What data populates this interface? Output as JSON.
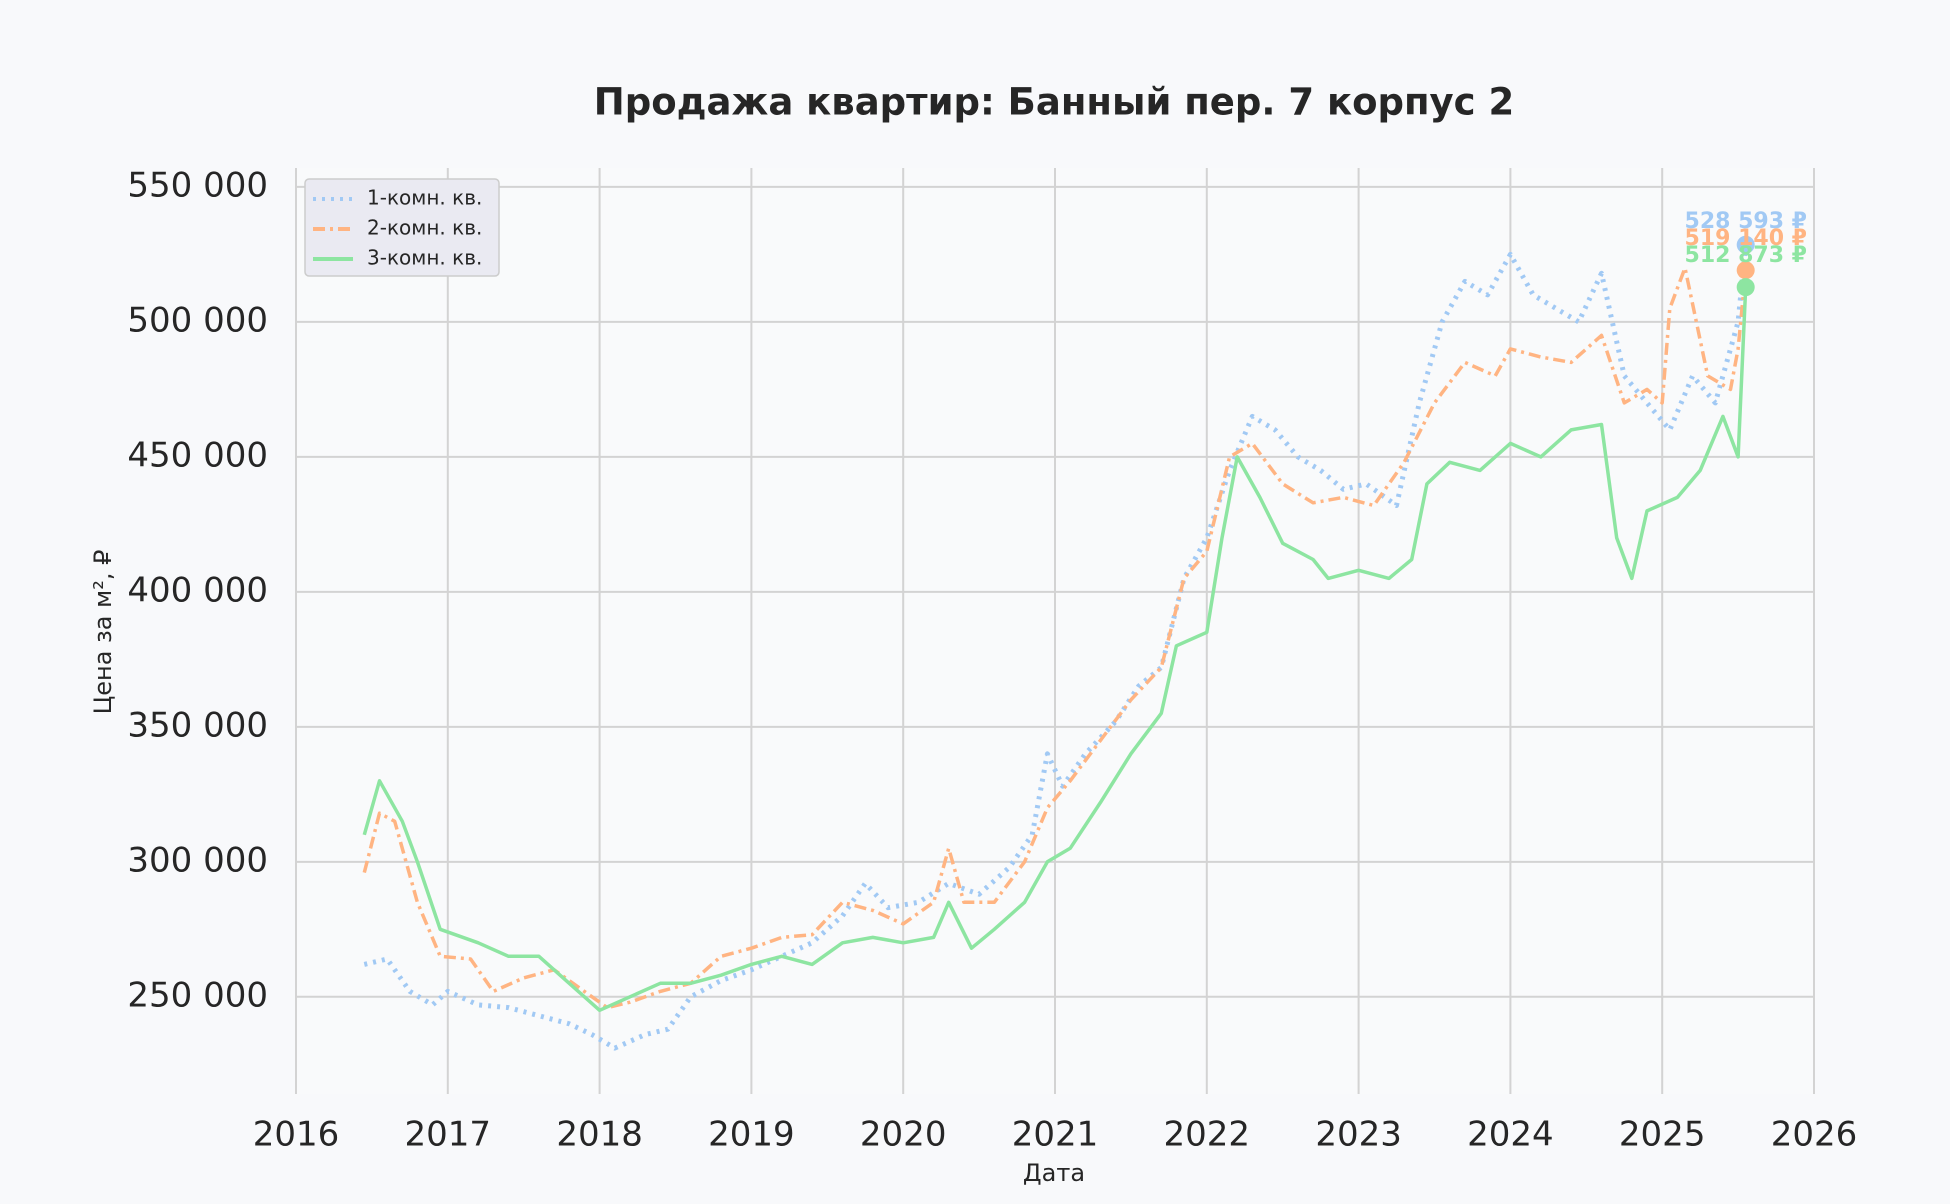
{
  "chart_data": {
    "type": "line",
    "title": "Продажа квартир: Банный пер. 7 корпус 2",
    "x_label": "Дата",
    "y_label": "Цена за м², ₽",
    "xlim": [
      2016,
      2026
    ],
    "xticks": [
      2016,
      2017,
      2018,
      2019,
      2020,
      2021,
      2022,
      2023,
      2024,
      2025,
      2026
    ],
    "ylim": [
      214000,
      557000
    ],
    "yticks": [
      {
        "value": 250000,
        "label": "250 000"
      },
      {
        "value": 300000,
        "label": "300 000"
      },
      {
        "value": 350000,
        "label": "350 000"
      },
      {
        "value": 400000,
        "label": "400 000"
      },
      {
        "value": 450000,
        "label": "450 000"
      },
      {
        "value": 500000,
        "label": "500 000"
      },
      {
        "value": 550000,
        "label": "550 000"
      }
    ],
    "grid": true,
    "legend": "upper left",
    "series": [
      {
        "name": "1-комн. кв.",
        "color": "#a1c9f4",
        "linestyle": "dotted",
        "x": [
          2016.45,
          2016.6,
          2016.75,
          2016.9,
          2017.0,
          2017.2,
          2017.4,
          2017.6,
          2017.8,
          2017.95,
          2018.1,
          2018.3,
          2018.45,
          2018.6,
          2018.8,
          2019.0,
          2019.2,
          2019.4,
          2019.6,
          2019.75,
          2019.9,
          2020.1,
          2020.3,
          2020.5,
          2020.7,
          2020.85,
          2020.95,
          2021.05,
          2021.2,
          2021.4,
          2021.55,
          2021.7,
          2021.85,
          2022.0,
          2022.15,
          2022.3,
          2022.45,
          2022.6,
          2022.75,
          2022.9,
          2023.05,
          2023.25,
          2023.4,
          2023.55,
          2023.7,
          2023.85,
          2024.0,
          2024.15,
          2024.3,
          2024.45,
          2024.6,
          2024.75,
          2024.9,
          2025.05,
          2025.2,
          2025.35,
          2025.5,
          2025.55
        ],
        "values": [
          262000,
          264000,
          252000,
          247000,
          252000,
          247000,
          246000,
          243000,
          240000,
          236000,
          231000,
          236000,
          238000,
          250000,
          256000,
          260000,
          265000,
          270000,
          280000,
          292000,
          283000,
          285000,
          292000,
          288000,
          298000,
          310000,
          340000,
          328000,
          340000,
          352000,
          365000,
          372000,
          405000,
          420000,
          445000,
          465000,
          460000,
          450000,
          445000,
          438000,
          440000,
          432000,
          470000,
          500000,
          515000,
          510000,
          525000,
          510000,
          505000,
          500000,
          518000,
          480000,
          470000,
          460000,
          480000,
          470000,
          500000,
          528593
        ],
        "end_label": "528 593 ₽"
      },
      {
        "name": "2-комн. кв.",
        "color": "#ffb482",
        "linestyle": "dashdot",
        "x": [
          2016.45,
          2016.55,
          2016.65,
          2016.8,
          2016.95,
          2017.15,
          2017.3,
          2017.5,
          2017.7,
          2017.9,
          2018.05,
          2018.2,
          2018.4,
          2018.6,
          2018.8,
          2019.0,
          2019.2,
          2019.4,
          2019.6,
          2019.8,
          2020.0,
          2020.2,
          2020.3,
          2020.4,
          2020.6,
          2020.8,
          2020.95,
          2021.1,
          2021.3,
          2021.5,
          2021.7,
          2021.85,
          2022.0,
          2022.15,
          2022.3,
          2022.5,
          2022.7,
          2022.9,
          2023.1,
          2023.3,
          2023.5,
          2023.7,
          2023.9,
          2024.0,
          2024.2,
          2024.4,
          2024.6,
          2024.75,
          2024.9,
          2025.0,
          2025.05,
          2025.15,
          2025.3,
          2025.45,
          2025.5,
          2025.55
        ],
        "values": [
          296000,
          318000,
          315000,
          285000,
          265000,
          264000,
          252000,
          257000,
          260000,
          252000,
          246000,
          248000,
          252000,
          255000,
          265000,
          268000,
          272000,
          273000,
          285000,
          282000,
          277000,
          285000,
          305000,
          285000,
          285000,
          300000,
          320000,
          330000,
          345000,
          360000,
          372000,
          405000,
          415000,
          450000,
          455000,
          440000,
          433000,
          435000,
          432000,
          448000,
          470000,
          485000,
          480000,
          490000,
          487000,
          485000,
          495000,
          470000,
          475000,
          470000,
          505000,
          520000,
          480000,
          475000,
          490000,
          519140
        ],
        "end_label": "519 140 ₽"
      },
      {
        "name": "3-комн. кв.",
        "color": "#8de5a1",
        "linestyle": "solid",
        "x": [
          2016.45,
          2016.55,
          2016.7,
          2016.8,
          2016.95,
          2017.2,
          2017.4,
          2017.6,
          2017.8,
          2018.0,
          2018.2,
          2018.4,
          2018.6,
          2018.8,
          2019.0,
          2019.2,
          2019.4,
          2019.6,
          2019.8,
          2020.0,
          2020.2,
          2020.3,
          2020.45,
          2020.6,
          2020.8,
          2020.95,
          2021.1,
          2021.3,
          2021.5,
          2021.7,
          2021.8,
          2022.0,
          2022.1,
          2022.2,
          2022.35,
          2022.5,
          2022.7,
          2022.8,
          2023.0,
          2023.2,
          2023.35,
          2023.45,
          2023.6,
          2023.8,
          2024.0,
          2024.2,
          2024.4,
          2024.6,
          2024.7,
          2024.8,
          2024.9,
          2025.1,
          2025.25,
          2025.4,
          2025.5,
          2025.55
        ],
        "values": [
          310000,
          330000,
          315000,
          300000,
          275000,
          270000,
          265000,
          265000,
          255000,
          245000,
          250000,
          255000,
          255000,
          258000,
          262000,
          265000,
          262000,
          270000,
          272000,
          270000,
          272000,
          285000,
          268000,
          275000,
          285000,
          300000,
          305000,
          322000,
          340000,
          355000,
          380000,
          385000,
          420000,
          450000,
          435000,
          418000,
          412000,
          405000,
          408000,
          405000,
          412000,
          440000,
          448000,
          445000,
          455000,
          450000,
          460000,
          462000,
          420000,
          405000,
          430000,
          435000,
          445000,
          465000,
          450000,
          512873
        ],
        "end_label": "512 873 ₽"
      }
    ]
  }
}
